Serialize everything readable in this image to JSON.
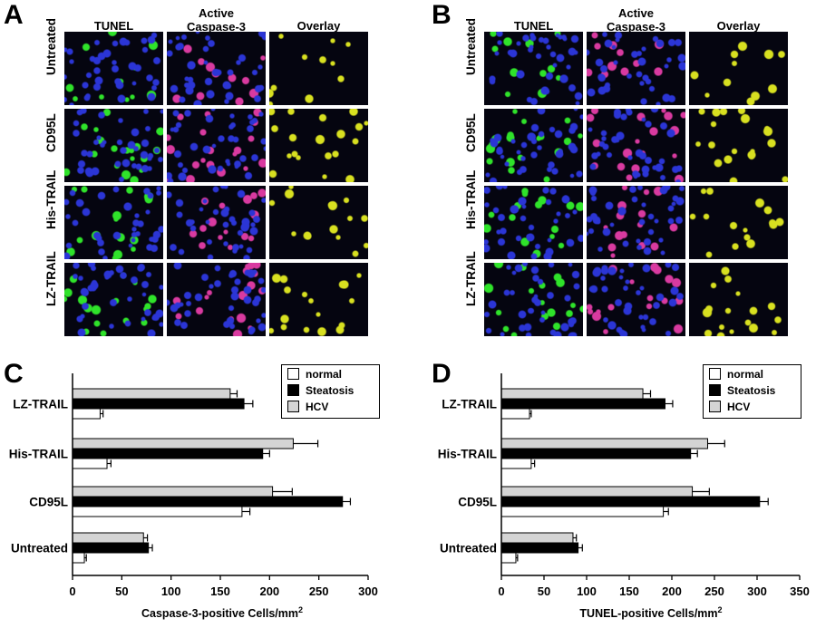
{
  "panels": {
    "a": {
      "letter": "A"
    },
    "b": {
      "letter": "B"
    },
    "c": {
      "letter": "C"
    },
    "d": {
      "letter": "D"
    }
  },
  "micrographs": {
    "column_headers": [
      "TUNEL",
      "Active\nCaspase-3",
      "Overlay"
    ],
    "row_labels": [
      "Untreated",
      "CD95L",
      "His-TRAIL",
      "LZ-TRAIL"
    ],
    "colors": {
      "background": "#050510",
      "nuclei": "#2b35d6",
      "tunel": "#2fe32a",
      "caspase": "#d93aa0",
      "overlay": "#d8e020"
    }
  },
  "chart_data": [
    {
      "type": "bar",
      "orientation": "horizontal",
      "categories": [
        "Untreated",
        "CD95L",
        "His-TRAIL",
        "LZ-TRAIL"
      ],
      "series": [
        {
          "name": "normal",
          "color": "#ffffff",
          "values": [
            12,
            172,
            35,
            28
          ],
          "errors": [
            2,
            8,
            4,
            3
          ]
        },
        {
          "name": "Steatosis",
          "color": "#000000",
          "values": [
            77,
            274,
            193,
            174
          ],
          "errors": [
            4,
            8,
            7,
            9
          ]
        },
        {
          "name": "HCV",
          "color": "#d4d4d4",
          "values": [
            72,
            203,
            224,
            160
          ],
          "errors": [
            4,
            20,
            25,
            7
          ]
        }
      ],
      "xlabel": "Caspase-3-positive Cells/mm",
      "xlabel_superscript": "2",
      "xlim": [
        0,
        300
      ],
      "xticks": [
        0,
        50,
        100,
        150,
        200,
        250,
        300
      ],
      "legend": "top-right",
      "grid": false
    },
    {
      "type": "bar",
      "orientation": "horizontal",
      "categories": [
        "Untreated",
        "CD95L",
        "His-TRAIL",
        "LZ-TRAIL"
      ],
      "series": [
        {
          "name": "normal",
          "color": "#ffffff",
          "values": [
            17,
            190,
            35,
            33
          ],
          "errors": [
            2,
            6,
            4,
            2
          ]
        },
        {
          "name": "Steatosis",
          "color": "#000000",
          "values": [
            90,
            303,
            222,
            192
          ],
          "errors": [
            5,
            10,
            8,
            9
          ]
        },
        {
          "name": "HCV",
          "color": "#d4d4d4",
          "values": [
            84,
            224,
            242,
            166
          ],
          "errors": [
            4,
            20,
            20,
            9
          ]
        }
      ],
      "xlabel": "TUNEL-positive Cells/mm",
      "xlabel_superscript": "2",
      "xlim": [
        0,
        350
      ],
      "xticks": [
        0,
        50,
        100,
        150,
        200,
        250,
        300,
        350
      ],
      "legend": "top-right",
      "grid": false
    }
  ]
}
